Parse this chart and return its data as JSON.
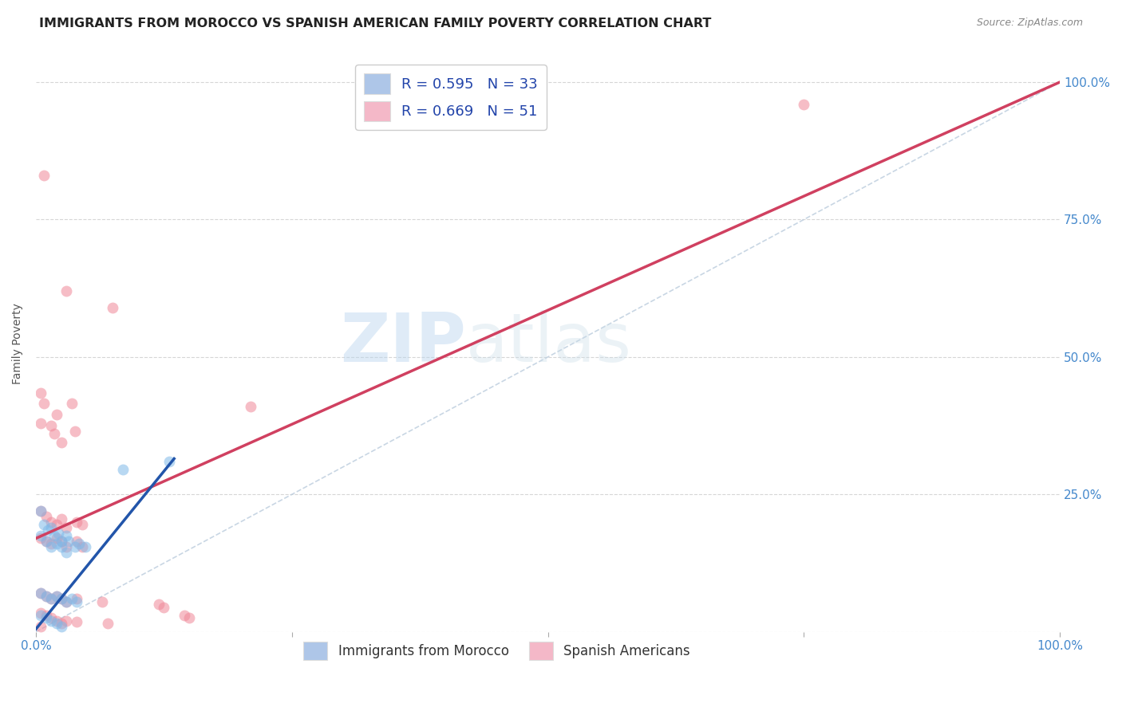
{
  "title": "IMMIGRANTS FROM MOROCCO VS SPANISH AMERICAN FAMILY POVERTY CORRELATION CHART",
  "source": "Source: ZipAtlas.com",
  "ylabel": "Family Poverty",
  "xlabel": "",
  "x_ticks": [
    0.0,
    0.25,
    0.5,
    0.75,
    1.0
  ],
  "x_tick_labels": [
    "0.0%",
    "",
    "",
    "",
    "100.0%"
  ],
  "y_ticks": [
    0.0,
    0.25,
    0.5,
    0.75,
    1.0
  ],
  "y_tick_labels": [
    "",
    "25.0%",
    "50.0%",
    "75.0%",
    "100.0%"
  ],
  "legend_entries": [
    {
      "label": "R = 0.595   N = 33",
      "color": "#aec6e8"
    },
    {
      "label": "R = 0.669   N = 51",
      "color": "#f4b8c8"
    }
  ],
  "bottom_legend": [
    {
      "label": "Immigrants from Morocco",
      "color": "#aec6e8"
    },
    {
      "label": "Spanish Americans",
      "color": "#f4b8c8"
    }
  ],
  "blue_scatter": [
    [
      0.005,
      0.22
    ],
    [
      0.008,
      0.195
    ],
    [
      0.012,
      0.185
    ],
    [
      0.015,
      0.19
    ],
    [
      0.018,
      0.175
    ],
    [
      0.022,
      0.18
    ],
    [
      0.025,
      0.165
    ],
    [
      0.03,
      0.175
    ],
    [
      0.032,
      0.165
    ],
    [
      0.038,
      0.155
    ],
    [
      0.042,
      0.16
    ],
    [
      0.048,
      0.155
    ],
    [
      0.005,
      0.175
    ],
    [
      0.01,
      0.165
    ],
    [
      0.015,
      0.155
    ],
    [
      0.02,
      0.16
    ],
    [
      0.025,
      0.155
    ],
    [
      0.03,
      0.145
    ],
    [
      0.005,
      0.07
    ],
    [
      0.01,
      0.065
    ],
    [
      0.015,
      0.06
    ],
    [
      0.02,
      0.065
    ],
    [
      0.025,
      0.06
    ],
    [
      0.03,
      0.055
    ],
    [
      0.035,
      0.06
    ],
    [
      0.04,
      0.055
    ],
    [
      0.005,
      0.03
    ],
    [
      0.01,
      0.025
    ],
    [
      0.015,
      0.02
    ],
    [
      0.02,
      0.015
    ],
    [
      0.025,
      0.01
    ],
    [
      0.085,
      0.295
    ],
    [
      0.13,
      0.31
    ]
  ],
  "pink_scatter": [
    [
      0.008,
      0.83
    ],
    [
      0.03,
      0.62
    ],
    [
      0.075,
      0.59
    ],
    [
      0.005,
      0.435
    ],
    [
      0.008,
      0.415
    ],
    [
      0.02,
      0.395
    ],
    [
      0.035,
      0.415
    ],
    [
      0.015,
      0.375
    ],
    [
      0.018,
      0.36
    ],
    [
      0.025,
      0.345
    ],
    [
      0.038,
      0.365
    ],
    [
      0.005,
      0.38
    ],
    [
      0.005,
      0.22
    ],
    [
      0.01,
      0.21
    ],
    [
      0.015,
      0.2
    ],
    [
      0.02,
      0.195
    ],
    [
      0.025,
      0.205
    ],
    [
      0.03,
      0.19
    ],
    [
      0.04,
      0.2
    ],
    [
      0.045,
      0.195
    ],
    [
      0.005,
      0.17
    ],
    [
      0.01,
      0.165
    ],
    [
      0.015,
      0.16
    ],
    [
      0.02,
      0.17
    ],
    [
      0.025,
      0.165
    ],
    [
      0.03,
      0.155
    ],
    [
      0.04,
      0.165
    ],
    [
      0.045,
      0.155
    ],
    [
      0.005,
      0.07
    ],
    [
      0.01,
      0.065
    ],
    [
      0.015,
      0.06
    ],
    [
      0.02,
      0.065
    ],
    [
      0.025,
      0.06
    ],
    [
      0.03,
      0.055
    ],
    [
      0.04,
      0.06
    ],
    [
      0.065,
      0.055
    ],
    [
      0.005,
      0.035
    ],
    [
      0.01,
      0.03
    ],
    [
      0.015,
      0.025
    ],
    [
      0.02,
      0.02
    ],
    [
      0.025,
      0.015
    ],
    [
      0.03,
      0.02
    ],
    [
      0.04,
      0.018
    ],
    [
      0.07,
      0.015
    ],
    [
      0.12,
      0.05
    ],
    [
      0.125,
      0.045
    ],
    [
      0.145,
      0.03
    ],
    [
      0.15,
      0.025
    ],
    [
      0.21,
      0.41
    ],
    [
      0.75,
      0.96
    ],
    [
      0.005,
      0.01
    ]
  ],
  "blue_line_x": [
    0.0,
    0.135
  ],
  "blue_line_y": [
    0.005,
    0.315
  ],
  "pink_line_x": [
    0.0,
    1.0
  ],
  "pink_line_y": [
    0.17,
    1.0
  ],
  "ref_line_x": [
    0.0,
    1.0
  ],
  "ref_line_y": [
    0.0,
    1.0
  ],
  "background_color": "#ffffff",
  "grid_color": "#cccccc",
  "scatter_size": 100,
  "blue_color": "#7eb8e8",
  "pink_color": "#f08898",
  "blue_line_color": "#2255aa",
  "pink_line_color": "#d04060",
  "ref_line_color": "#bbccdd",
  "watermark_zip": "ZIP",
  "watermark_atlas": "atlas",
  "title_fontsize": 11.5,
  "axis_label_fontsize": 10,
  "tick_fontsize": 11
}
